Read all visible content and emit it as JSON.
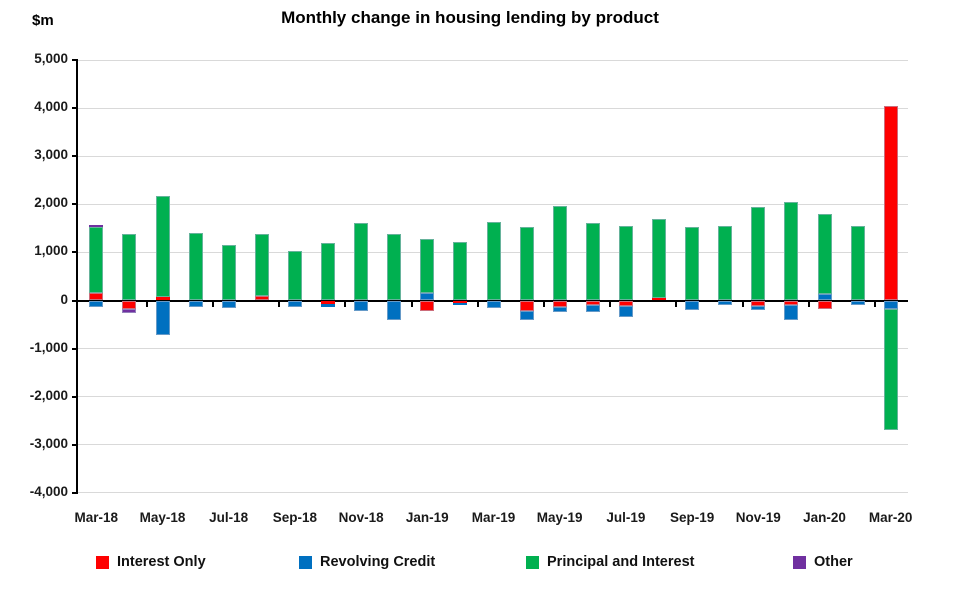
{
  "title": "Monthly change in housing lending by product",
  "y_axis": {
    "unit_label": "$m",
    "tick_labels": [
      "5,000",
      "4,000",
      "3,000",
      "2,000",
      "1,000",
      "0",
      "-1,000",
      "-2,000",
      "-3,000",
      "-4,000"
    ],
    "tick_values": [
      5000,
      4000,
      3000,
      2000,
      1000,
      0,
      -1000,
      -2000,
      -3000,
      -4000
    ]
  },
  "chart_data": {
    "type": "bar",
    "stacked": true,
    "title": "Monthly change in housing lending by product",
    "ylabel": "$m",
    "ylim": [
      -4000,
      5000
    ],
    "grid": true,
    "legend_position": "bottom",
    "categories": [
      "Mar-18",
      "Apr-18",
      "May-18",
      "Jun-18",
      "Jul-18",
      "Aug-18",
      "Sep-18",
      "Oct-18",
      "Nov-18",
      "Dec-18",
      "Jan-19",
      "Feb-19",
      "Mar-19",
      "Apr-19",
      "May-19",
      "Jun-19",
      "Jul-19",
      "Aug-19",
      "Sep-19",
      "Oct-19",
      "Nov-19",
      "Dec-19",
      "Jan-20",
      "Feb-20",
      "Mar-20"
    ],
    "x_tick_labels": [
      "Mar-18",
      "May-18",
      "Jul-18",
      "Sep-18",
      "Nov-18",
      "Jan-19",
      "Mar-19",
      "May-19",
      "Jul-19",
      "Sep-19",
      "Nov-19",
      "Jan-20",
      "Mar-20"
    ],
    "series": [
      {
        "name": "Interest Only",
        "color": "#FE0000",
        "values": [
          150,
          -180,
          70,
          0,
          0,
          85,
          0,
          -80,
          0,
          0,
          -210,
          -60,
          0,
          -215,
          -125,
          -90,
          -110,
          50,
          0,
          0,
          -105,
          -95,
          -180,
          0,
          4050
        ]
      },
      {
        "name": "Revolving Credit",
        "color": "#0070C0",
        "values": [
          -130,
          0,
          -720,
          -130,
          -160,
          0,
          -125,
          -45,
          -220,
          -400,
          160,
          -40,
          -160,
          -185,
          -105,
          -150,
          -240,
          0,
          -200,
          -100,
          -90,
          -310,
          145,
          -95,
          -185
        ]
      },
      {
        "name": "Principal and Interest",
        "color": "#00B050",
        "values": [
          1375,
          1390,
          2110,
          1410,
          1150,
          1290,
          1030,
          1200,
          1620,
          1390,
          1115,
          1225,
          1630,
          1530,
          1965,
          1620,
          1550,
          1640,
          1520,
          1560,
          1950,
          2040,
          1645,
          1540,
          -2505
        ]
      },
      {
        "name": "Other",
        "color": "#7030A0",
        "values": [
          40,
          -90,
          0,
          0,
          0,
          0,
          0,
          0,
          0,
          0,
          0,
          0,
          0,
          0,
          0,
          0,
          0,
          0,
          0,
          0,
          0,
          0,
          0,
          0,
          0
        ]
      }
    ]
  },
  "legend": {
    "items": [
      {
        "label": "Interest Only",
        "color": "#FE0000"
      },
      {
        "label": "Revolving Credit",
        "color": "#0070C0"
      },
      {
        "label": "Principal and Interest",
        "color": "#00B050"
      },
      {
        "label": "Other",
        "color": "#7030A0"
      }
    ]
  }
}
